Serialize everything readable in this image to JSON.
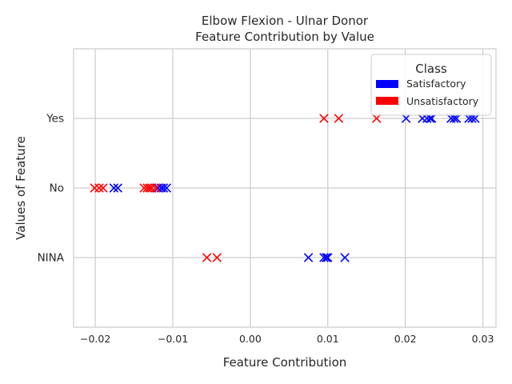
{
  "chart_data": {
    "type": "scatter",
    "title": "Elbow Flexion - Ulnar Donor",
    "subtitle": "Feature Contribution by Value",
    "xlabel": "Feature Contribution",
    "ylabel": "Values of Feature",
    "xlim": [
      -0.0228,
      0.0317
    ],
    "xticks": [
      -0.02,
      -0.01,
      0.0,
      0.01,
      0.02,
      0.03
    ],
    "xtick_labels": [
      "−0.02",
      "−0.01",
      "0.00",
      "0.01",
      "0.02",
      "0.03"
    ],
    "categories": [
      "NINA",
      "No",
      "Yes"
    ],
    "grid": true,
    "marker": "x",
    "legend": {
      "title": "Class",
      "placement": "top-right",
      "entries": [
        {
          "label": "Satisfactory",
          "color": "#0000ff"
        },
        {
          "label": "Unsatisfactory",
          "color": "#ff0000"
        }
      ]
    },
    "series": [
      {
        "name": "Satisfactory",
        "color": "#0000ff",
        "points": [
          {
            "x": 0.0201,
            "y": "Yes"
          },
          {
            "x": 0.0222,
            "y": "Yes"
          },
          {
            "x": 0.0228,
            "y": "Yes"
          },
          {
            "x": 0.0232,
            "y": "Yes"
          },
          {
            "x": 0.0234,
            "y": "Yes"
          },
          {
            "x": 0.0259,
            "y": "Yes"
          },
          {
            "x": 0.0263,
            "y": "Yes"
          },
          {
            "x": 0.0266,
            "y": "Yes"
          },
          {
            "x": 0.0282,
            "y": "Yes"
          },
          {
            "x": 0.0286,
            "y": "Yes"
          },
          {
            "x": 0.029,
            "y": "Yes"
          },
          {
            "x": -0.0176,
            "y": "No"
          },
          {
            "x": -0.0171,
            "y": "No"
          },
          {
            "x": -0.0119,
            "y": "No"
          },
          {
            "x": -0.0115,
            "y": "No"
          },
          {
            "x": -0.0112,
            "y": "No"
          },
          {
            "x": -0.0108,
            "y": "No"
          },
          {
            "x": 0.0075,
            "y": "NINA"
          },
          {
            "x": 0.0095,
            "y": "NINA"
          },
          {
            "x": 0.0098,
            "y": "NINA"
          },
          {
            "x": 0.01,
            "y": "NINA"
          },
          {
            "x": 0.0122,
            "y": "NINA"
          }
        ]
      },
      {
        "name": "Unsatisfactory",
        "color": "#ff0000",
        "points": [
          {
            "x": 0.0095,
            "y": "Yes"
          },
          {
            "x": 0.0114,
            "y": "Yes"
          },
          {
            "x": 0.0163,
            "y": "Yes"
          },
          {
            "x": -0.0201,
            "y": "No"
          },
          {
            "x": -0.0195,
            "y": "No"
          },
          {
            "x": -0.019,
            "y": "No"
          },
          {
            "x": -0.0137,
            "y": "No"
          },
          {
            "x": -0.0133,
            "y": "No"
          },
          {
            "x": -0.013,
            "y": "No"
          },
          {
            "x": -0.0127,
            "y": "No"
          },
          {
            "x": -0.0122,
            "y": "No"
          },
          {
            "x": -0.0056,
            "y": "NINA"
          },
          {
            "x": -0.0043,
            "y": "NINA"
          }
        ]
      }
    ]
  }
}
